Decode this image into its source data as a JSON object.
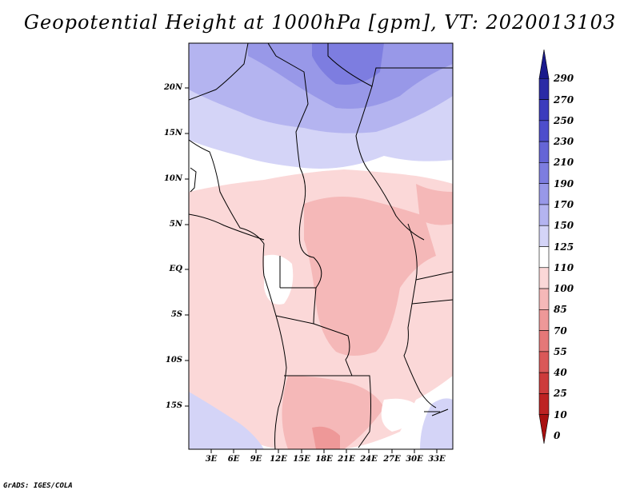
{
  "title": "Geopotential Height at 1000hPa [gpm], VT: 2020013103",
  "footer": "GrADS: IGES/COLA",
  "map": {
    "lat_labels": [
      "20N",
      "15N",
      "10N",
      "5N",
      "EQ",
      "5S",
      "10S",
      "15S"
    ],
    "lon_labels": [
      "3E",
      "6E",
      "9E",
      "12E",
      "15E",
      "18E",
      "21E",
      "24E",
      "27E",
      "30E",
      "33E"
    ]
  },
  "colorbar": {
    "labels": [
      "290",
      "270",
      "250",
      "230",
      "210",
      "190",
      "170",
      "150",
      "125",
      "110",
      "100",
      "85",
      "70",
      "55",
      "40",
      "25",
      "10",
      "0"
    ],
    "colors": [
      "#1a1a8c",
      "#2b2ba6",
      "#3b3bbd",
      "#4d4dcc",
      "#6565d6",
      "#7d7de0",
      "#9898e8",
      "#b4b4f0",
      "#d4d4f7",
      "#ffffff",
      "#fbd8d8",
      "#f5b8b8",
      "#ee9898",
      "#e57878",
      "#da5858",
      "#cd3b3b",
      "#bd2222",
      "#a81010"
    ]
  }
}
